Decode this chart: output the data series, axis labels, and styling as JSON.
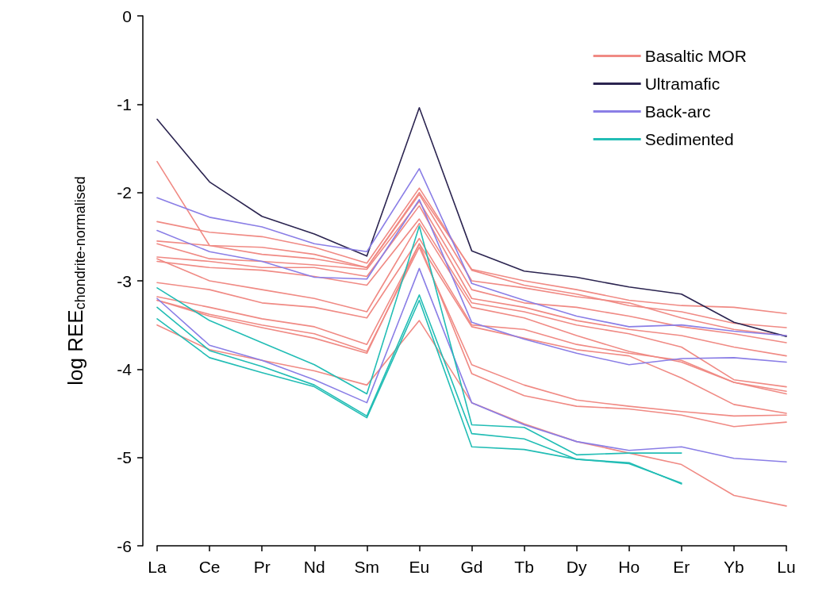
{
  "chart_data": {
    "type": "line",
    "ylabel": "log REE$_{chondrite-normalised}$",
    "categories": [
      "La",
      "Ce",
      "Pr",
      "Nd",
      "Sm",
      "Eu",
      "Gd",
      "Tb",
      "Dy",
      "Ho",
      "Er",
      "Yb",
      "Lu"
    ],
    "ylim": [
      -6,
      0
    ],
    "yticks": [
      -6,
      -5,
      -4,
      -3,
      -2,
      -1,
      0
    ],
    "grid": false,
    "legend": "top right",
    "marker": "none",
    "line_style": "solid",
    "series": [
      {
        "name": "Basaltic MOR",
        "color": "#f08a84",
        "values": [
          -1.65,
          -2.6,
          -2.7,
          -2.75,
          -2.85,
          -2.0,
          -2.87,
          -3.0,
          -3.1,
          -3.22,
          -3.28,
          -3.3,
          -3.37
        ]
      },
      {
        "color": "#f08a84",
        "values": [
          -2.33,
          -2.45,
          -2.5,
          -2.62,
          -2.8,
          -1.95,
          -2.88,
          -3.05,
          -3.15,
          -3.28,
          -3.35,
          -3.48,
          -3.53
        ]
      },
      {
        "color": "#f08a84",
        "values": [
          -2.55,
          -2.6,
          -2.62,
          -2.7,
          -2.85,
          -2.02,
          -3.0,
          -3.08,
          -3.18,
          -3.25,
          -3.42,
          -3.55,
          -3.62
        ]
      },
      {
        "color": "#f08a84",
        "values": [
          -2.58,
          -2.75,
          -2.78,
          -2.82,
          -2.87,
          -2.1,
          -3.1,
          -3.25,
          -3.3,
          -3.4,
          -3.52,
          -3.6,
          -3.7
        ]
      },
      {
        "color": "#f08a84",
        "values": [
          -2.73,
          -2.78,
          -2.85,
          -2.85,
          -2.95,
          -2.15,
          -3.2,
          -3.3,
          -3.45,
          -3.55,
          -3.62,
          -3.75,
          -3.85
        ]
      },
      {
        "color": "#f08a84",
        "values": [
          -2.78,
          -2.85,
          -2.88,
          -2.95,
          -3.05,
          -2.3,
          -3.25,
          -3.35,
          -3.5,
          -3.6,
          -3.75,
          -4.12,
          -4.2
        ]
      },
      {
        "color": "#f08a84",
        "values": [
          -2.75,
          -3.0,
          -3.1,
          -3.2,
          -3.35,
          -2.35,
          -3.3,
          -3.42,
          -3.62,
          -3.8,
          -3.92,
          -4.15,
          -4.25
        ]
      },
      {
        "color": "#f08a84",
        "values": [
          -3.02,
          -3.1,
          -3.25,
          -3.3,
          -3.42,
          -2.52,
          -3.5,
          -3.55,
          -3.72,
          -3.82,
          -3.9,
          -4.15,
          -4.28
        ]
      },
      {
        "color": "#f08a84",
        "values": [
          -3.18,
          -3.3,
          -3.43,
          -3.52,
          -3.72,
          -2.58,
          -3.52,
          -3.65,
          -3.78,
          -3.85,
          -4.1,
          -4.4,
          -4.5
        ]
      },
      {
        "color": "#f08a84",
        "values": [
          -3.22,
          -3.38,
          -3.5,
          -3.6,
          -3.8,
          -2.62,
          -3.95,
          -4.18,
          -4.35,
          -4.42,
          -4.48,
          -4.53,
          -4.52
        ]
      },
      {
        "color": "#f08a84",
        "values": [
          -3.22,
          -3.4,
          -3.53,
          -3.65,
          -3.82,
          -2.58,
          -4.05,
          -4.3,
          -4.42,
          -4.45,
          -4.52,
          -4.65,
          -4.6
        ]
      },
      {
        "color": "#f08a84",
        "values": [
          -3.5,
          -3.78,
          -3.9,
          -4.02,
          -4.18,
          -3.45,
          -4.38,
          -4.62,
          -4.82,
          -4.95,
          -5.08,
          -5.43,
          -5.55
        ]
      },
      {
        "name": "Ultramafic",
        "color": "#2b2450",
        "values": [
          -1.17,
          -1.88,
          -2.27,
          -2.47,
          -2.72,
          -1.04,
          -2.66,
          -2.89,
          -2.96,
          -3.07,
          -3.15,
          -3.47,
          -3.63
        ]
      },
      {
        "name": "Back-arc",
        "color": "#8a7ee6",
        "values": [
          -2.06,
          -2.28,
          -2.39,
          -2.58,
          -2.67,
          -1.73,
          -3.03,
          -3.22,
          -3.4,
          -3.52,
          -3.5,
          -3.57,
          -3.62
        ]
      },
      {
        "color": "#8a7ee6",
        "values": [
          -2.43,
          -2.67,
          -2.78,
          -2.96,
          -2.98,
          -2.08,
          -3.47,
          -3.66,
          -3.82,
          -3.95,
          -3.88,
          -3.87,
          -3.92
        ]
      },
      {
        "color": "#8a7ee6",
        "values": [
          -3.2,
          -3.73,
          -3.9,
          -4.12,
          -4.38,
          -2.86,
          -4.38,
          -4.63,
          -4.82,
          -4.92,
          -4.88,
          -5.01,
          -5.05
        ]
      },
      {
        "name": "Sedimented",
        "color": "#22bdb5",
        "values": [
          -3.08,
          -3.45,
          -3.7,
          -3.95,
          -4.28,
          -2.38,
          -4.63,
          -4.66,
          -4.97,
          -4.95,
          -4.95,
          null,
          null
        ]
      },
      {
        "color": "#22bdb5",
        "values": [
          -3.3,
          -3.79,
          -3.97,
          -4.18,
          -4.53,
          -3.16,
          -4.73,
          -4.79,
          -5.02,
          -5.06,
          -5.3,
          null,
          null
        ]
      },
      {
        "color": "#22bdb5",
        "values": [
          -3.43,
          -3.87,
          -4.04,
          -4.2,
          -4.55,
          -3.22,
          -4.88,
          -4.91,
          -5.02,
          -5.07,
          -5.29,
          null,
          null
        ]
      }
    ]
  }
}
